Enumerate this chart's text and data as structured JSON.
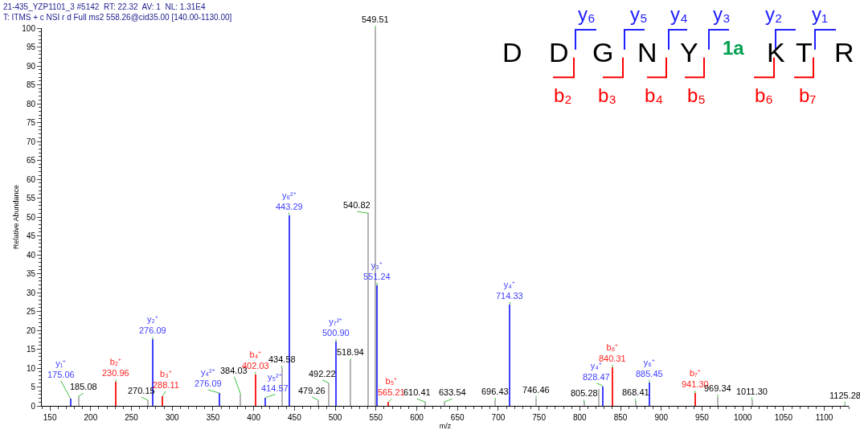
{
  "chart_data": {
    "type": "bar",
    "title": "21-435_YZP1101_3 #5142  RT: 22.32  AV: 1  NL: 1.31E4",
    "subtitle": "T: ITMS + c NSI r d Full ms2 558.26@cid35.00 [140.00-1130.00]",
    "xlabel": "m/z",
    "ylabel": "Relative Abundance",
    "xlim": [
      140,
      1130
    ],
    "xticks": [
      150,
      200,
      250,
      300,
      350,
      400,
      450,
      500,
      550,
      600,
      650,
      700,
      750,
      800,
      850,
      900,
      950,
      1000,
      1050,
      1100
    ],
    "ylim": [
      0,
      100
    ],
    "yticks": [
      0,
      5,
      10,
      15,
      20,
      25,
      30,
      35,
      40,
      45,
      50,
      55,
      60,
      65,
      70,
      75,
      80,
      85,
      90,
      95,
      100
    ],
    "series": [
      {
        "color": "#b4b4b4",
        "x": [
          185.08,
          270.15,
          384.03,
          434.58,
          479.26,
          492.22,
          518.94,
          540.82,
          549.51,
          610.41,
          633.54,
          696.43,
          746.46,
          805.28,
          823,
          868.41,
          969.34,
          1011.3,
          1125.28
        ],
        "values": [
          2.5,
          1.5,
          3,
          10,
          1.5,
          6,
          12.1,
          51,
          100,
          1,
          1,
          1.5,
          2,
          1,
          4.5,
          1.2,
          2.4,
          1.5,
          0.5
        ]
      },
      {
        "color": "#4040ff",
        "x": [
          175.06,
          276.09,
          357.7,
          414.57,
          443.29,
          500.9,
          551.24,
          714.33,
          828.47,
          885.45
        ],
        "values": [
          2,
          17.6,
          3.4,
          2.2,
          50.5,
          17,
          31.9,
          26.8,
          5.2,
          6.2
        ]
      },
      {
        "color": "#ff2020",
        "x": [
          230.96,
          288.11,
          402.03,
          565.21,
          840.31,
          941.3
        ],
        "values": [
          6.3,
          2.6,
          8.4,
          1,
          10.2,
          3.4
        ]
      }
    ],
    "annotations": [
      {
        "text": "y₁⁺\n175.06",
        "x": 175.06,
        "y": 2
      },
      {
        "text": "185.08",
        "x": 185.08,
        "y": 2.5
      },
      {
        "text": "b₂⁺\n230.96",
        "x": 230.96,
        "y": 6.3
      },
      {
        "text": "270.15",
        "x": 270.15,
        "y": 1.5
      },
      {
        "text": "y₂⁺\n276.09",
        "x": 276.09,
        "y": 17.6
      },
      {
        "text": "b₃⁺\n288.11",
        "x": 288.11,
        "y": 2.6
      },
      {
        "text": "y₄²⁺\n276.09",
        "x": 357.7,
        "y": 3.4
      },
      {
        "text": "384.03",
        "x": 384.03,
        "y": 3
      },
      {
        "text": "b₄⁺\n402.03",
        "x": 402.03,
        "y": 8.4
      },
      {
        "text": "y₅²⁺\n414.57",
        "x": 414.57,
        "y": 2.2
      },
      {
        "text": "434.58",
        "x": 434.58,
        "y": 10
      },
      {
        "text": "y₆²⁺\n443.29",
        "x": 443.29,
        "y": 50.5
      },
      {
        "text": "479.26",
        "x": 479.26,
        "y": 1.5
      },
      {
        "text": "492.22",
        "x": 492.22,
        "y": 6
      },
      {
        "text": "y₇²⁺\n500.90",
        "x": 500.9,
        "y": 17
      },
      {
        "text": "518.94",
        "x": 518.94,
        "y": 12.1
      },
      {
        "text": "540.82",
        "x": 540.82,
        "y": 51
      },
      {
        "text": "549.51",
        "x": 549.51,
        "y": 100
      },
      {
        "text": "y₃⁺\n551.24",
        "x": 551.24,
        "y": 31.9
      },
      {
        "text": "b₅⁺\n565.21",
        "x": 565.21,
        "y": 1
      },
      {
        "text": "610.41",
        "x": 610.41,
        "y": 1
      },
      {
        "text": "633.54",
        "x": 633.54,
        "y": 1
      },
      {
        "text": "696.43",
        "x": 696.43,
        "y": 1.5
      },
      {
        "text": "y₄⁺\n714.33",
        "x": 714.33,
        "y": 26.8
      },
      {
        "text": "746.46",
        "x": 746.46,
        "y": 2
      },
      {
        "text": "805.28",
        "x": 805.28,
        "y": 1
      },
      {
        "text": "y₄⁺\n828.47",
        "x": 828.47,
        "y": 5.2
      },
      {
        "text": "b₆⁺\n840.31",
        "x": 840.31,
        "y": 10.2
      },
      {
        "text": "868.41",
        "x": 868.41,
        "y": 1.2
      },
      {
        "text": "y₆⁺\n885.45",
        "x": 885.45,
        "y": 6.2
      },
      {
        "text": "b₇⁺\n941.30",
        "x": 941.3,
        "y": 3.4
      },
      {
        "text": "969.34",
        "x": 969.34,
        "y": 2.4
      },
      {
        "text": "1011.30",
        "x": 1011.3,
        "y": 1.5
      },
      {
        "text": "1125.28",
        "x": 1125.28,
        "y": 0.5
      },
      "D",
      "D",
      "G",
      "N",
      "Y",
      "1a",
      "K",
      "T",
      "R",
      "y₆",
      "y₅",
      "y₄",
      "y₃",
      "y₂",
      "y₁",
      "b₂",
      "b₃",
      "b₄",
      "b₅",
      "b₆",
      "b₇"
    ]
  }
}
